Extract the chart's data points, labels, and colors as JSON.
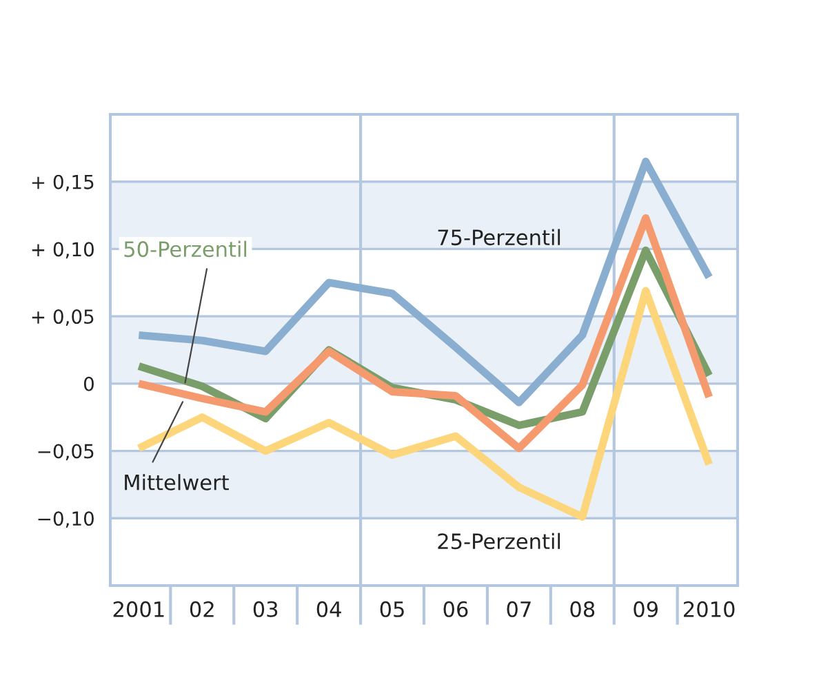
{
  "chart_data": {
    "type": "line",
    "categories": [
      "2001",
      "02",
      "03",
      "04",
      "05",
      "06",
      "07",
      "08",
      "09",
      "2010"
    ],
    "series": [
      {
        "name": "75-Perzentil",
        "color": "#8aaecf",
        "values": [
          0.036,
          0.032,
          0.024,
          0.075,
          0.067,
          0.027,
          -0.014,
          0.036,
          0.165,
          0.079
        ]
      },
      {
        "name": "50-Perzentil",
        "color": "#7a9e6a",
        "values": [
          0.013,
          -0.002,
          -0.026,
          0.025,
          -0.003,
          -0.012,
          -0.031,
          -0.021,
          0.099,
          0.006
        ]
      },
      {
        "name": "Mittelwert",
        "color": "#f59a6e",
        "values": [
          0.0,
          -0.011,
          -0.021,
          0.024,
          -0.006,
          -0.009,
          -0.048,
          -0.001,
          0.123,
          -0.01
        ]
      },
      {
        "name": "25-Perzentil",
        "color": "#fdd57a",
        "values": [
          -0.048,
          -0.025,
          -0.05,
          -0.029,
          -0.053,
          -0.039,
          -0.077,
          -0.099,
          0.069,
          -0.06
        ]
      }
    ],
    "ylim": [
      -0.15,
      0.2
    ],
    "yticks": [
      {
        "value": -0.1,
        "label": "−0,10"
      },
      {
        "value": -0.05,
        "label": "−0,05"
      },
      {
        "value": 0,
        "label": "0"
      },
      {
        "value": 0.05,
        "label": "+ 0,05"
      },
      {
        "value": 0.1,
        "label": "+ 0,10"
      },
      {
        "value": 0.15,
        "label": "+ 0,15"
      }
    ],
    "grid": "y",
    "legend": false,
    "marker": "none",
    "line_style": "solid"
  }
}
